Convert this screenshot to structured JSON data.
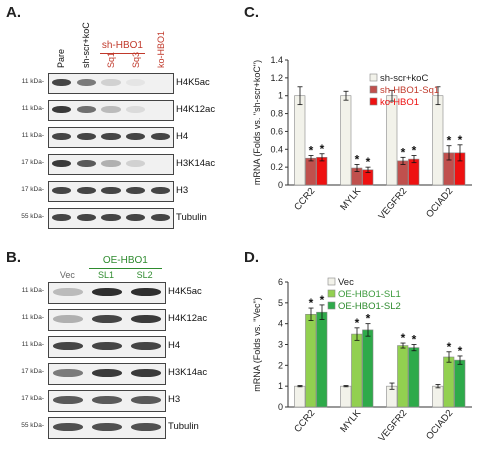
{
  "panels": {
    "A": {
      "letter": "A.",
      "lanes": [
        {
          "label": "Pare",
          "color": "#111111"
        },
        {
          "label": "sh-scr+koC",
          "color": "#111111"
        },
        {
          "label": "Sq1",
          "color": "#c0392b"
        },
        {
          "label": "Sq3",
          "color": "#c0392b"
        },
        {
          "label": "ko-HBO1",
          "color": "#c0392b"
        }
      ],
      "group_label": "sh-HBO1",
      "blots": [
        {
          "kda": "11 kDa-",
          "label": "H4K5ac",
          "intensity": [
            0.8,
            0.55,
            0.15,
            0.05,
            0.0
          ]
        },
        {
          "kda": "11 kDa-",
          "label": "H4K12ac",
          "intensity": [
            0.85,
            0.6,
            0.25,
            0.1,
            0.0
          ]
        },
        {
          "kda": "11 kDa-",
          "label": "H4",
          "intensity": [
            0.8,
            0.8,
            0.8,
            0.8,
            0.8
          ]
        },
        {
          "kda": "17 kDa-",
          "label": "H3K14ac",
          "intensity": [
            0.85,
            0.7,
            0.3,
            0.15,
            0.0
          ]
        },
        {
          "kda": "17 kDa-",
          "label": "H3",
          "intensity": [
            0.8,
            0.8,
            0.8,
            0.8,
            0.8
          ]
        },
        {
          "kda": "55 kDa-",
          "label": "Tubulin",
          "intensity": [
            0.8,
            0.8,
            0.8,
            0.8,
            0.8
          ]
        }
      ]
    },
    "B": {
      "letter": "B.",
      "group_label": "OE-HBO1",
      "lanes": [
        {
          "label": "Vec",
          "color": "#666666"
        },
        {
          "label": "SL1",
          "color": "#2e8b2e"
        },
        {
          "label": "SL2",
          "color": "#2e8b2e"
        }
      ],
      "blots": [
        {
          "kda": "11 kDa-",
          "label": "H4K5ac",
          "intensity": [
            0.25,
            0.9,
            0.9
          ]
        },
        {
          "kda": "11 kDa-",
          "label": "H4K12ac",
          "intensity": [
            0.3,
            0.8,
            0.85
          ]
        },
        {
          "kda": "11 kDa-",
          "label": "H4",
          "intensity": [
            0.8,
            0.8,
            0.8
          ]
        },
        {
          "kda": "17 kDa-",
          "label": "H3K14ac",
          "intensity": [
            0.55,
            0.85,
            0.85
          ]
        },
        {
          "kda": "17 kDa-",
          "label": "H3",
          "intensity": [
            0.7,
            0.7,
            0.7
          ]
        },
        {
          "kda": "55 kDa-",
          "label": "Tubulin",
          "intensity": [
            0.75,
            0.75,
            0.75
          ]
        }
      ]
    },
    "C": {
      "letter": "C."
    },
    "D": {
      "letter": "D."
    }
  },
  "chart_data": [
    {
      "type": "bar",
      "panel": "C",
      "title": "",
      "ylabel": "mRNA (Folds vs. \"sh-scr+koC\")",
      "xlabel": "",
      "ylim": [
        0,
        1.4
      ],
      "yticks": [
        "0",
        "0.2",
        "0.4",
        "0.6",
        "0.8",
        "1",
        "1.2",
        "1.4"
      ],
      "categories": [
        "CCR2",
        "MYLK",
        "VEGFR2",
        "OCIAD2"
      ],
      "legend_position": "top-right",
      "series": [
        {
          "name": "sh-scr+koC",
          "color": "#f2f2ea",
          "values": [
            1.0,
            1.0,
            1.0,
            1.0
          ],
          "errors": [
            0.1,
            0.05,
            0.06,
            0.1
          ],
          "marks": [
            "",
            "",
            "",
            ""
          ]
        },
        {
          "name": "sh-HBO1-Sq1",
          "color": "#c0504d",
          "values": [
            0.3,
            0.19,
            0.27,
            0.36
          ],
          "errors": [
            0.03,
            0.04,
            0.04,
            0.08
          ],
          "marks": [
            "*",
            "*",
            "*",
            "*"
          ]
        },
        {
          "name": "ko-HBO1",
          "color": "#ee1111",
          "values": [
            0.31,
            0.17,
            0.29,
            0.36
          ],
          "errors": [
            0.04,
            0.03,
            0.04,
            0.09
          ],
          "marks": [
            "*",
            "*",
            "*",
            "*"
          ]
        }
      ]
    },
    {
      "type": "bar",
      "panel": "D",
      "title": "",
      "ylabel": "mRNA (Folds vs. \"Vec\")",
      "xlabel": "",
      "ylim": [
        0,
        6
      ],
      "yticks": [
        "0",
        "1",
        "2",
        "3",
        "4",
        "5",
        "6"
      ],
      "categories": [
        "CCR2",
        "MYLK",
        "VEGFR2",
        "OCIAD2"
      ],
      "legend_position": "top-right",
      "series": [
        {
          "name": "Vec",
          "color": "#f2f2ea",
          "values": [
            1.0,
            1.0,
            1.0,
            1.0
          ],
          "errors": [
            0.03,
            0.03,
            0.15,
            0.08
          ],
          "marks": [
            "",
            "",
            "",
            ""
          ]
        },
        {
          "name": "OE-HBO1-SL1",
          "color": "#92d050",
          "values": [
            4.45,
            3.5,
            2.95,
            2.4
          ],
          "errors": [
            0.3,
            0.3,
            0.12,
            0.25
          ],
          "marks": [
            "*",
            "*",
            "*",
            "*"
          ]
        },
        {
          "name": "OE-HBO1-SL2",
          "color": "#2eaa4a",
          "values": [
            4.55,
            3.7,
            2.85,
            2.25
          ],
          "errors": [
            0.35,
            0.3,
            0.15,
            0.2
          ],
          "marks": [
            "*",
            "*",
            "*",
            "*"
          ]
        }
      ]
    }
  ]
}
